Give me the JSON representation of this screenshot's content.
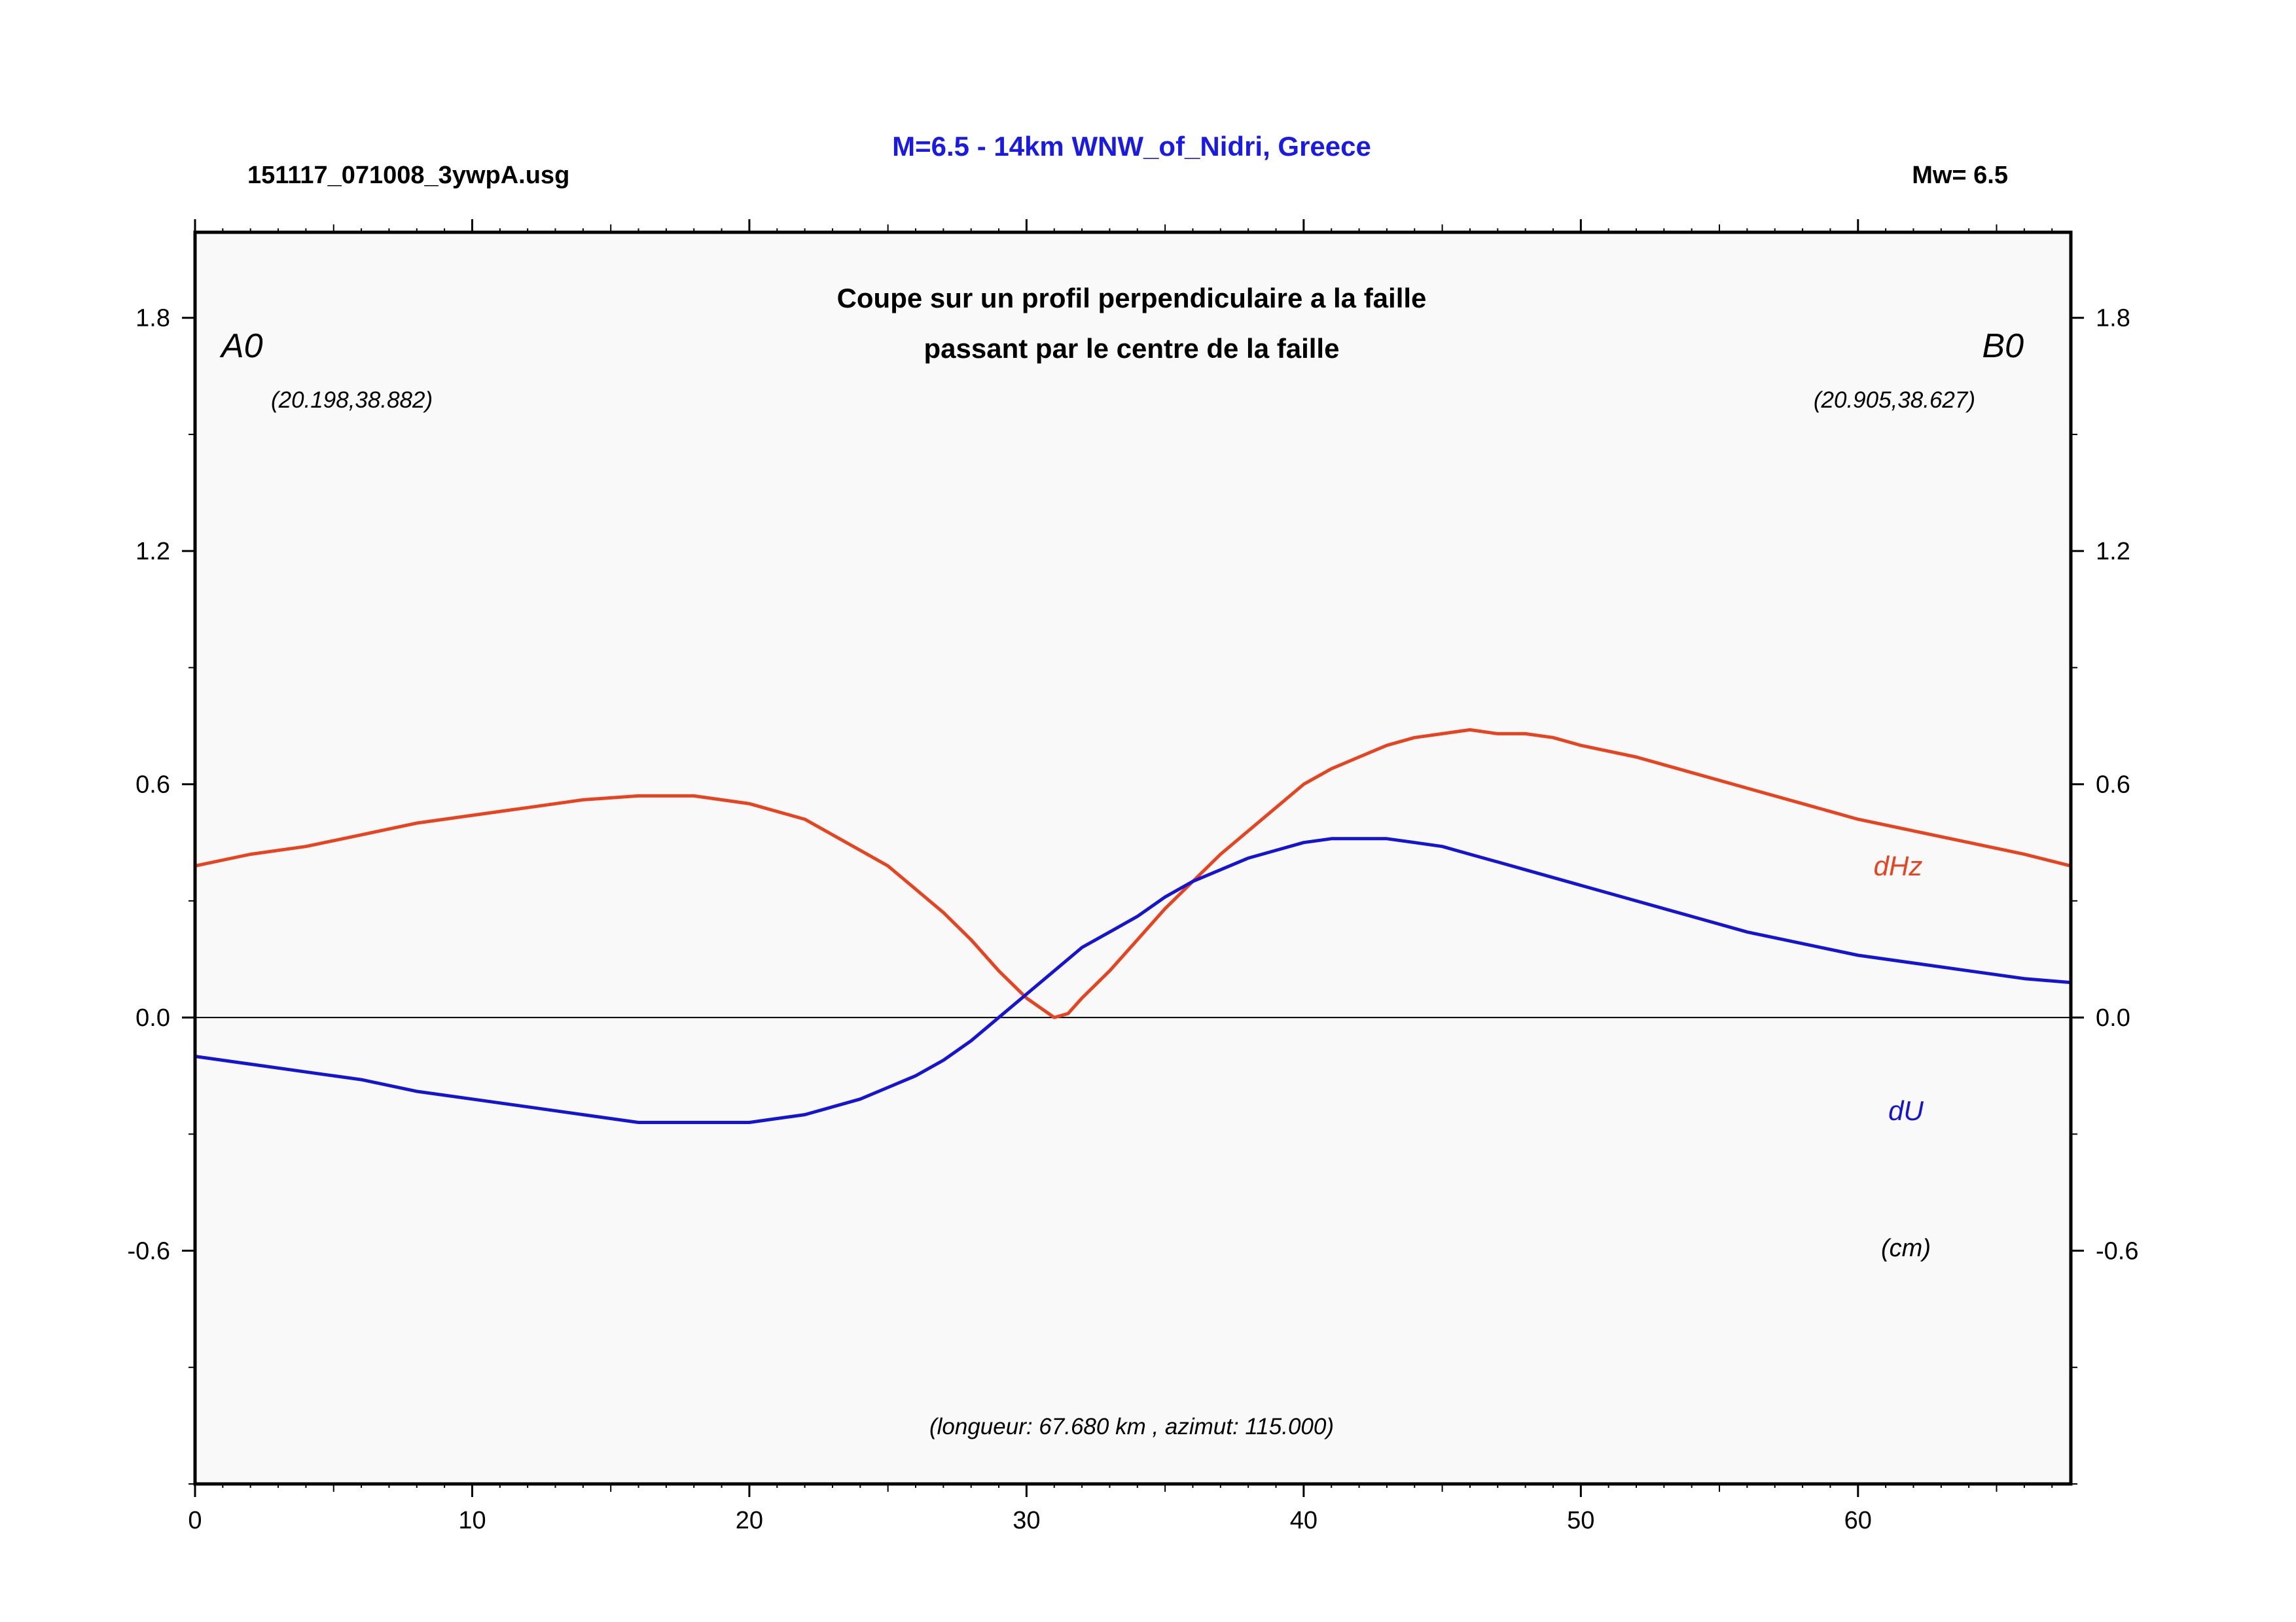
{
  "header": {
    "file_name": "151117_071008_3ywpA.usg",
    "title": "M=6.5 - 14km WNW_of_Nidri, Greece",
    "magnitude": "Mw= 6.5"
  },
  "colors": {
    "title": "#1a1ae6",
    "dHz": "#e8431f",
    "dU": "#1414d2",
    "plot_bg": "#f9f9f9",
    "frame": "#000000"
  },
  "chart_data": {
    "type": "line",
    "subtitle_line1": "Coupe sur un profil perpendiculaire a la faille",
    "subtitle_line2": "passant par le centre de la faille",
    "start_label": "A0",
    "start_coords": "(20.198,38.882)",
    "end_label": "B0",
    "end_coords": "(20.905,38.627)",
    "unit_label": "(cm)",
    "footer": "(longueur: 67.680 km , azimut: 115.000)",
    "xlim": [
      0,
      67.68
    ],
    "ylim": [
      -1.2,
      2.02
    ],
    "x_ticks": [
      0,
      10,
      20,
      30,
      40,
      50,
      60
    ],
    "y_ticks": [
      -0.6,
      0.0,
      0.6,
      1.2,
      1.8
    ],
    "y_tick_labels": [
      "-0.6",
      "0.0",
      "0.6",
      "1.2",
      "1.8"
    ],
    "zero_line": true,
    "series": [
      {
        "name": "dHz",
        "x": [
          0,
          2,
          4,
          6,
          8,
          10,
          12,
          14,
          16,
          18,
          20,
          22,
          24,
          25,
          26,
          27,
          28,
          29,
          30,
          31,
          31.5,
          32,
          33,
          34,
          35,
          36,
          37,
          38,
          39,
          40,
          41,
          42,
          43,
          44,
          45,
          46,
          47,
          48,
          49,
          50,
          52,
          54,
          56,
          58,
          60,
          62,
          64,
          66,
          67.68
        ],
        "y": [
          0.39,
          0.42,
          0.44,
          0.47,
          0.5,
          0.52,
          0.54,
          0.56,
          0.57,
          0.57,
          0.55,
          0.51,
          0.43,
          0.39,
          0.33,
          0.27,
          0.2,
          0.12,
          0.05,
          0.0,
          0.01,
          0.05,
          0.12,
          0.2,
          0.28,
          0.35,
          0.42,
          0.48,
          0.54,
          0.6,
          0.64,
          0.67,
          0.7,
          0.72,
          0.73,
          0.74,
          0.73,
          0.73,
          0.72,
          0.7,
          0.67,
          0.63,
          0.59,
          0.55,
          0.51,
          0.48,
          0.45,
          0.42,
          0.39
        ]
      },
      {
        "name": "dU",
        "x": [
          0,
          2,
          4,
          6,
          8,
          10,
          12,
          14,
          16,
          17,
          18,
          20,
          21,
          22,
          23,
          24,
          25,
          26,
          27,
          28,
          29,
          30,
          31,
          32,
          33,
          34,
          35,
          36,
          37,
          38,
          39,
          40,
          41,
          42,
          43,
          44,
          45,
          46,
          47,
          48,
          50,
          52,
          54,
          56,
          58,
          60,
          62,
          64,
          66,
          67.68
        ],
        "y": [
          -0.1,
          -0.12,
          -0.14,
          -0.16,
          -0.19,
          -0.21,
          -0.23,
          -0.25,
          -0.27,
          -0.27,
          -0.27,
          -0.27,
          -0.26,
          -0.25,
          -0.23,
          -0.21,
          -0.18,
          -0.15,
          -0.11,
          -0.06,
          0.0,
          0.06,
          0.12,
          0.18,
          0.22,
          0.26,
          0.31,
          0.35,
          0.38,
          0.41,
          0.43,
          0.45,
          0.46,
          0.46,
          0.46,
          0.45,
          0.44,
          0.42,
          0.4,
          0.38,
          0.34,
          0.3,
          0.26,
          0.22,
          0.19,
          0.16,
          0.14,
          0.12,
          0.1,
          0.09
        ]
      }
    ]
  }
}
